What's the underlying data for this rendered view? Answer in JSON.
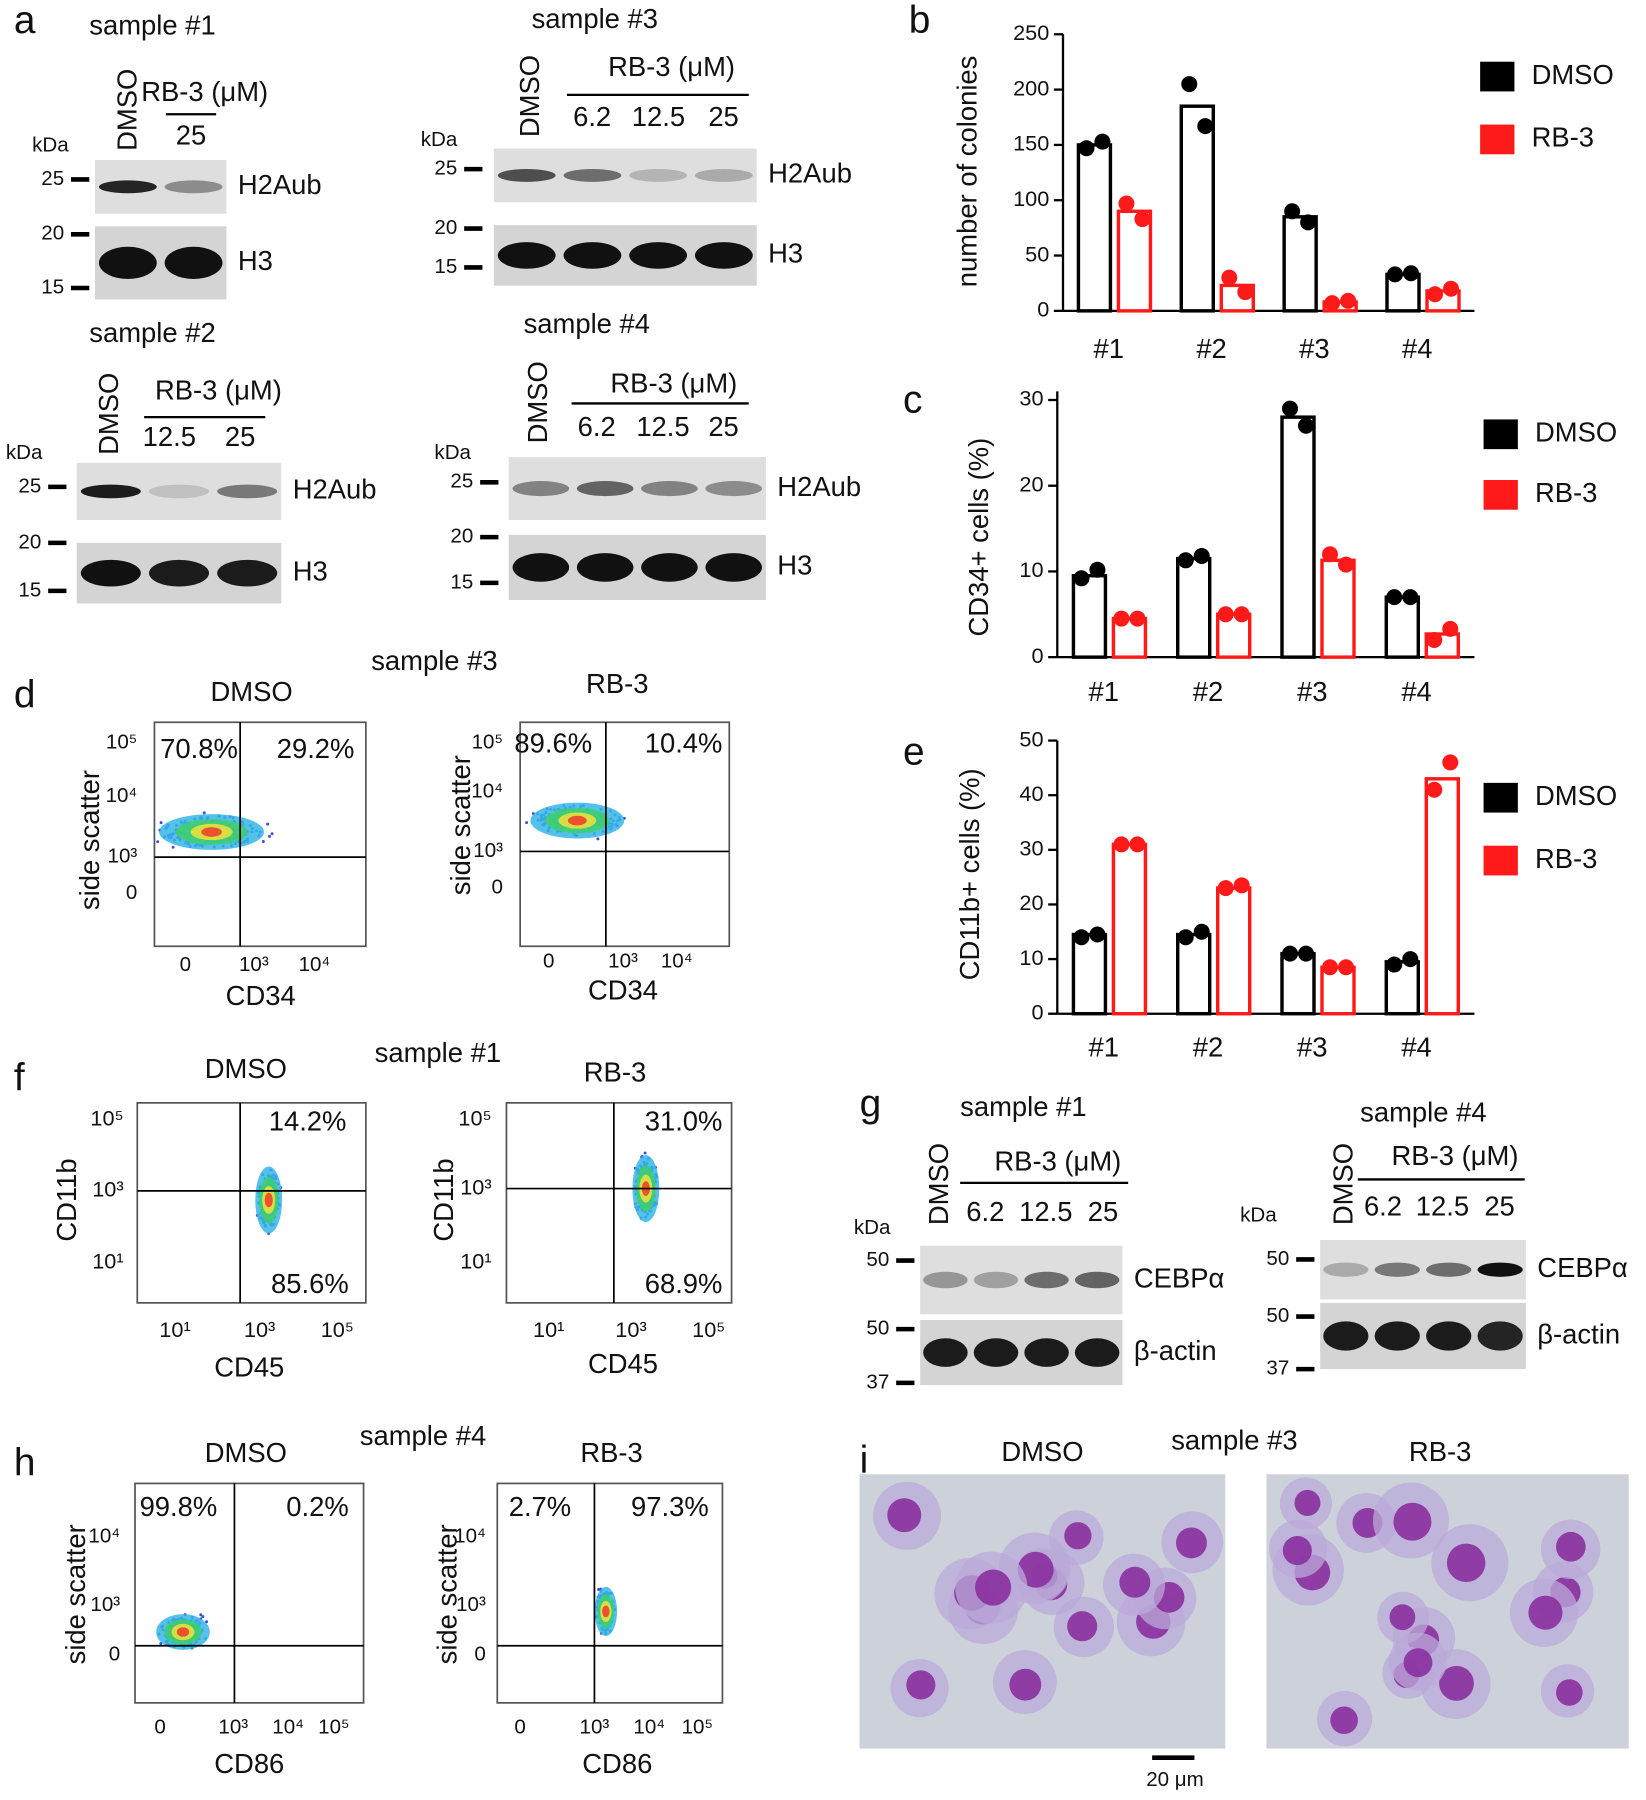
{
  "panel_letters": [
    "a",
    "b",
    "c",
    "d",
    "e",
    "f",
    "g",
    "h",
    "i"
  ],
  "chart_data": [
    {
      "type": "bar",
      "ylabel": "number of colonies",
      "categories": [
        "#1",
        "#2",
        "#3",
        "#4"
      ],
      "ylim": [
        0,
        250
      ],
      "yticks": [
        0,
        50,
        100,
        150,
        200,
        250
      ],
      "series": [
        {
          "name": "DMSO",
          "color": "#000000",
          "values": [
            150,
            185,
            85,
            33
          ],
          "replicates": [
            [
              147,
              153
            ],
            [
              205,
              167
            ],
            [
              90,
              80
            ],
            [
              33,
              34
            ]
          ]
        },
        {
          "name": "RB-3",
          "color": "#ff1a1a",
          "values": [
            90,
            23,
            8,
            18
          ],
          "replicates": [
            [
              97,
              83
            ],
            [
              30,
              17
            ],
            [
              7,
              9
            ],
            [
              15,
              20
            ]
          ]
        }
      ]
    },
    {
      "type": "bar",
      "ylabel": "CD34+ cells (%)",
      "categories": [
        "#1",
        "#2",
        "#3",
        "#4"
      ],
      "ylim": [
        0,
        31
      ],
      "yticks": [
        0,
        10,
        20,
        30
      ],
      "series": [
        {
          "name": "DMSO",
          "color": "#000000",
          "values": [
            9.5,
            11.5,
            28,
            7
          ],
          "replicates": [
            [
              9.2,
              10.2
            ],
            [
              11.3,
              11.8
            ],
            [
              29,
              27
            ],
            [
              7,
              7
            ]
          ]
        },
        {
          "name": "RB-3",
          "color": "#ff1a1a",
          "values": [
            4.5,
            5,
            11.3,
            2.7
          ],
          "replicates": [
            [
              4.5,
              4.5
            ],
            [
              5,
              5
            ],
            [
              12,
              10.8
            ],
            [
              2,
              3.3
            ]
          ]
        }
      ]
    },
    {
      "type": "bar",
      "ylabel": "CD11b+ cells (%)",
      "categories": [
        "#1",
        "#2",
        "#3",
        "#4"
      ],
      "ylim": [
        0,
        50
      ],
      "yticks": [
        0,
        10,
        20,
        30,
        40,
        50
      ],
      "series": [
        {
          "name": "DMSO",
          "color": "#000000",
          "values": [
            14.5,
            14.5,
            11,
            9.5
          ],
          "replicates": [
            [
              14,
              14.5
            ],
            [
              14,
              15
            ],
            [
              11,
              11
            ],
            [
              9,
              10
            ]
          ]
        },
        {
          "name": "RB-3",
          "color": "#ff1a1a",
          "values": [
            31,
            23,
            8.5,
            43
          ],
          "replicates": [
            [
              31,
              31
            ],
            [
              23,
              23.5
            ],
            [
              8.5,
              8.5
            ],
            [
              41,
              46
            ]
          ]
        }
      ]
    }
  ],
  "blots": [
    {
      "title": "sample #1",
      "lanes": [
        "DMSO"
      ],
      "treatment": "RB-3 (μM)",
      "doses": [
        "25"
      ],
      "kda": "kDa",
      "markers": [
        "25",
        "20",
        "15"
      ],
      "bands": [
        "H2Aub",
        "H3"
      ]
    },
    {
      "title": "sample #3",
      "lanes": [
        "DMSO"
      ],
      "treatment": "RB-3 (μM)",
      "doses": [
        "6.2",
        "12.5",
        "25"
      ],
      "kda": "kDa",
      "markers": [
        "25",
        "20",
        "15"
      ],
      "bands": [
        "H2Aub",
        "H3"
      ]
    },
    {
      "title": "sample #2",
      "lanes": [
        "DMSO"
      ],
      "treatment": "RB-3 (μM)",
      "doses": [
        "12.5",
        "25"
      ],
      "kda": "kDa",
      "markers": [
        "25",
        "20",
        "15"
      ],
      "bands": [
        "H2Aub",
        "H3"
      ]
    },
    {
      "title": "sample #4",
      "lanes": [
        "DMSO"
      ],
      "treatment": "RB-3 (μM)",
      "doses": [
        "6.2",
        "12.5",
        "25"
      ],
      "kda": "kDa",
      "markers": [
        "25",
        "20",
        "15"
      ],
      "bands": [
        "H2Aub",
        "H3"
      ]
    },
    {
      "title": "sample #1",
      "lanes": [
        "DMSO"
      ],
      "treatment": "RB-3 (μM)",
      "doses": [
        "6.2",
        "12.5",
        "25"
      ],
      "kda": "kDa",
      "markers": [
        "50",
        "50",
        "37"
      ],
      "bands": [
        "CEBPα",
        "β-actin"
      ]
    },
    {
      "title": "sample #4",
      "lanes": [
        "DMSO"
      ],
      "treatment": "RB-3 (μM)",
      "doses": [
        "6.2",
        "12.5",
        "25"
      ],
      "kda": "kDa",
      "markers": [
        "50",
        "50",
        "37"
      ],
      "bands": [
        "CEBPα",
        "β-actin"
      ]
    }
  ],
  "flow_samples": [
    "sample #3",
    "sample #1",
    "sample #4"
  ],
  "flow": [
    {
      "title": "DMSO",
      "quadrants": [
        "70.8%",
        "29.2%"
      ],
      "xlabel": "CD34",
      "ylabel": "side scatter",
      "xticks": [
        "0",
        "10³",
        "10⁴"
      ],
      "yticks": [
        "10⁵",
        "10⁴",
        "10³",
        "0"
      ]
    },
    {
      "title": "RB-3",
      "quadrants": [
        "89.6%",
        "10.4%"
      ],
      "xlabel": "CD34",
      "ylabel": "side scatter",
      "xticks": [
        "0",
        "10³",
        "10⁴"
      ],
      "yticks": [
        "10⁵",
        "10⁴",
        "10³",
        "0"
      ]
    },
    {
      "title": "DMSO",
      "quadrants": [
        "14.2%",
        "85.6%"
      ],
      "xlabel": "CD45",
      "ylabel": "CD11b",
      "xticks": [
        "10¹",
        "10³",
        "10⁵"
      ],
      "yticks": [
        "10⁵",
        "10³",
        "10¹"
      ]
    },
    {
      "title": "RB-3",
      "quadrants": [
        "31.0%",
        "68.9%"
      ],
      "xlabel": "CD45",
      "ylabel": "CD11b",
      "xticks": [
        "10¹",
        "10³",
        "10⁵"
      ],
      "yticks": [
        "10⁵",
        "10³",
        "10¹"
      ]
    },
    {
      "title": "DMSO",
      "quadrants": [
        "99.8%",
        "0.2%"
      ],
      "xlabel": "CD86",
      "ylabel": "side scatter",
      "xticks": [
        "0",
        "10³",
        "10⁴",
        "10⁵"
      ],
      "yticks": [
        "10⁴",
        "10³",
        "0"
      ]
    },
    {
      "title": "RB-3",
      "quadrants": [
        "2.7%",
        "97.3%"
      ],
      "xlabel": "CD86",
      "ylabel": "side scatter",
      "xticks": [
        "0",
        "10³",
        "10⁴",
        "10⁵"
      ],
      "yticks": [
        "10⁴",
        "10³",
        "0"
      ]
    }
  ],
  "micrographs": {
    "sample": "sample #3",
    "titles": [
      "DMSO",
      "RB-3"
    ],
    "scale_bar": "20 μm"
  }
}
